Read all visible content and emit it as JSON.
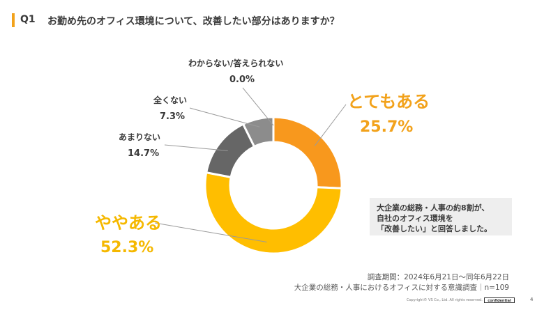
{
  "question": {
    "number": "Q1",
    "text": "お勤め先のオフィス環境について、改善したい部分はありますか？"
  },
  "chart_data": {
    "type": "pie",
    "donut": true,
    "categories": [
      "とてもある",
      "ややある",
      "あまりない",
      "全くない",
      "わからない/答えられない"
    ],
    "values": [
      25.7,
      52.3,
      14.7,
      7.3,
      0.0
    ],
    "value_labels": [
      "25.7%",
      "52.3%",
      "14.7%",
      "7.3%",
      "0.0%"
    ],
    "colors": [
      "#f8981d",
      "#ffbe00",
      "#666666",
      "#8c8c8c",
      "#c8c8c8"
    ]
  },
  "callout": {
    "lines": [
      "大企業の総務・人事の約8割が、",
      "自社のオフィス環境を",
      "「改善したい」と回答しました。"
    ]
  },
  "survey": {
    "period": "調査期間：2024年6月21日～同年6月22日",
    "title": "大企業の総務・人事におけるオフィスに対する意識調査｜n=109"
  },
  "footer": {
    "copyright": "Copyright© VS Co., Ltd. All rights reserved.",
    "confidential": "confidential",
    "page": "4"
  }
}
